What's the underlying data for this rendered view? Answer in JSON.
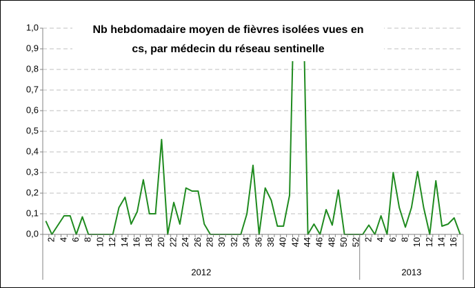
{
  "chart_data": {
    "type": "line",
    "title": [
      "Nb hebdomadaire moyen de fièvres isolées vues en",
      "cs, par médecin du réseau sentinelle"
    ],
    "groups": [
      {
        "label": "2012",
        "categories": [
          null,
          "2",
          null,
          "4",
          null,
          "6",
          null,
          "8",
          null,
          "10",
          null,
          "12",
          null,
          "14",
          null,
          "16",
          null,
          "18",
          null,
          "20",
          null,
          "22",
          null,
          "24",
          null,
          "26",
          null,
          "28",
          null,
          "30",
          null,
          "32",
          null,
          "34",
          null,
          "36",
          null,
          "38",
          null,
          "40",
          null,
          "42",
          null,
          "44",
          null,
          "46",
          null,
          "48",
          null,
          "50",
          null,
          "52"
        ]
      },
      {
        "label": "2013",
        "categories": [
          null,
          "2",
          null,
          "4",
          null,
          "6",
          null,
          "8",
          null,
          "10",
          null,
          "12",
          null,
          "14",
          null,
          "16",
          null
        ]
      }
    ],
    "series": [
      {
        "color": "#1e8a1e",
        "values": [
          0.065,
          0,
          0.045,
          0.09,
          0.09,
          0,
          0.085,
          0,
          0,
          0,
          0,
          0,
          0.13,
          0.18,
          0.05,
          0.11,
          0.265,
          0.1,
          0.1,
          0.46,
          0,
          0.155,
          0.05,
          0.225,
          0.21,
          0.21,
          0.05,
          0,
          0,
          0,
          0,
          0,
          0,
          0.1,
          0.335,
          0,
          0.225,
          0.165,
          0.04,
          0.04,
          0.19,
          1.5,
          1.5,
          0,
          0.05,
          0,
          0.12,
          0.045,
          0.215,
          0,
          0,
          0,
          0,
          0.045,
          0,
          0.09,
          0,
          0.3,
          0.13,
          0.035,
          0.13,
          0.305,
          0.13,
          0,
          0.26,
          0.04,
          0.05,
          0.08,
          0
        ]
      }
    ],
    "ylim": [
      0,
      1
    ],
    "yticks": [
      {
        "value": 0,
        "label": "0,0"
      },
      {
        "value": 0.1,
        "label": "0,1"
      },
      {
        "value": 0.2,
        "label": "0,2"
      },
      {
        "value": 0.3,
        "label": "0,3"
      },
      {
        "value": 0.4,
        "label": "0,4"
      },
      {
        "value": 0.5,
        "label": "0,5"
      },
      {
        "value": 0.6,
        "label": "0,6"
      },
      {
        "value": 0.7,
        "label": "0,7"
      },
      {
        "value": 0.8,
        "label": "0,8"
      },
      {
        "value": 0.9,
        "label": "0,9"
      },
      {
        "value": 1,
        "label": "1,0"
      }
    ],
    "grid": true
  }
}
